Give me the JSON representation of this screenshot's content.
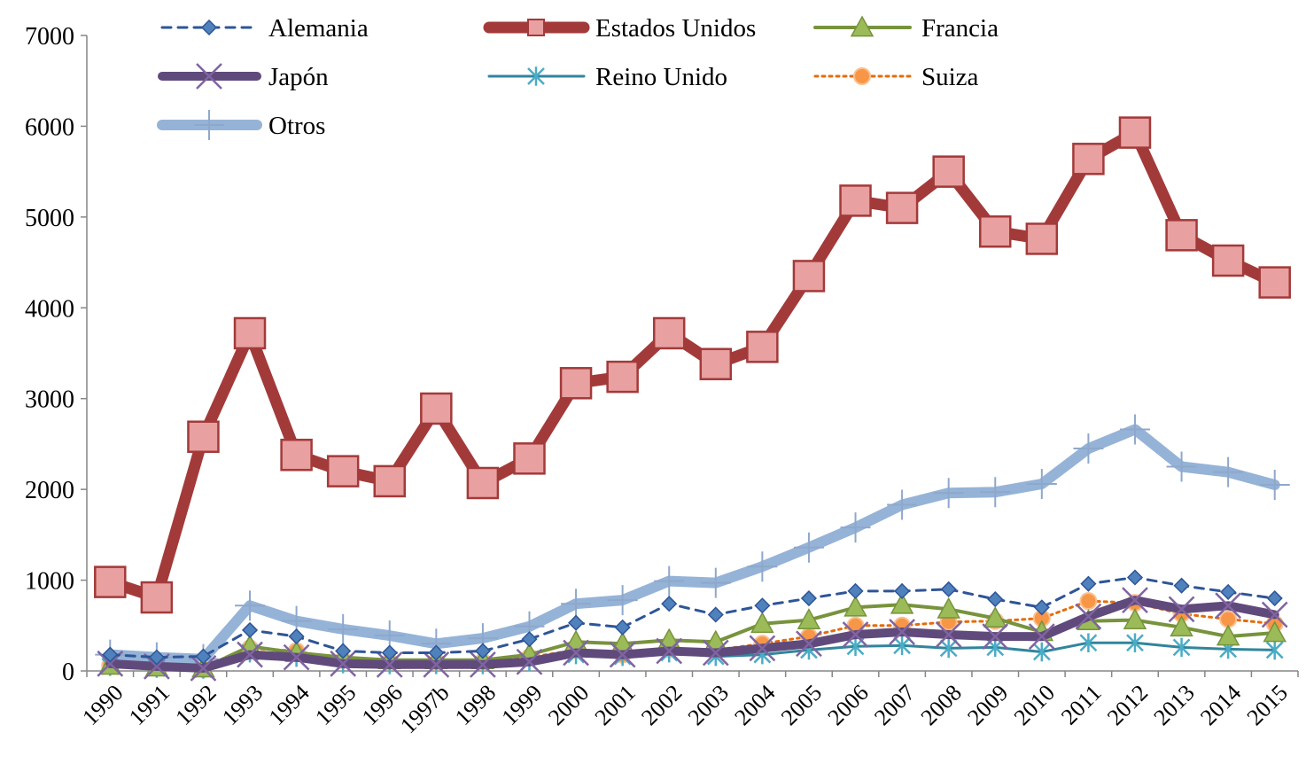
{
  "chart_data": {
    "type": "line",
    "title": "",
    "xlabel": "",
    "ylabel": "",
    "ylim": [
      0,
      7000
    ],
    "yticks": [
      0,
      1000,
      2000,
      3000,
      4000,
      5000,
      6000,
      7000
    ],
    "grid": false,
    "legend_position": "top",
    "categories": [
      "1990",
      "1991",
      "1992",
      "1993",
      "1994",
      "1995",
      "1996",
      "1997b",
      "1998",
      "1999",
      "2000",
      "2001",
      "2002",
      "2003",
      "2004",
      "2005",
      "2006",
      "2007",
      "2008",
      "2009",
      "2010",
      "2011",
      "2012",
      "2013",
      "2014",
      "2015"
    ],
    "series": [
      {
        "name": "Alemania",
        "color": "#2E5597",
        "fill": "#4F81BD",
        "marker": "diamond",
        "dash": "10,8",
        "width": 3,
        "values": [
          180,
          150,
          160,
          450,
          380,
          220,
          200,
          200,
          220,
          350,
          530,
          480,
          740,
          620,
          720,
          800,
          880,
          880,
          900,
          790,
          700,
          960,
          1030,
          940,
          870,
          800
        ]
      },
      {
        "name": "Estados Unidos",
        "color": "#A33A3A",
        "fill": "#E8A0A0",
        "marker": "square",
        "dash": "",
        "width": 13,
        "values": [
          980,
          810,
          2580,
          3720,
          2380,
          2200,
          2090,
          2890,
          2070,
          2340,
          3170,
          3240,
          3720,
          3380,
          3570,
          4350,
          5180,
          5100,
          5500,
          4840,
          4760,
          5640,
          5930,
          4800,
          4520,
          4280
        ]
      },
      {
        "name": "Francia",
        "color": "#77933C",
        "fill": "#9BBB59",
        "marker": "triangle",
        "dash": "",
        "width": 4,
        "values": [
          60,
          40,
          30,
          270,
          200,
          150,
          120,
          120,
          120,
          180,
          320,
          300,
          340,
          320,
          520,
          560,
          700,
          730,
          680,
          580,
          430,
          550,
          560,
          480,
          380,
          420
        ]
      },
      {
        "name": "Japón",
        "color": "#604A7B",
        "fill": "#8064A2",
        "marker": "x",
        "dash": "",
        "width": 10,
        "values": [
          80,
          50,
          30,
          180,
          150,
          80,
          70,
          70,
          70,
          100,
          200,
          180,
          220,
          200,
          250,
          300,
          400,
          430,
          400,
          380,
          380,
          600,
          780,
          680,
          720,
          620
        ]
      },
      {
        "name": "Reino Unido",
        "color": "#31859C",
        "fill": "#4BACC6",
        "marker": "star",
        "dash": "",
        "width": 3,
        "values": [
          50,
          30,
          20,
          200,
          150,
          80,
          70,
          70,
          70,
          100,
          180,
          160,
          200,
          160,
          180,
          230,
          270,
          280,
          250,
          260,
          210,
          310,
          310,
          260,
          240,
          230
        ]
      },
      {
        "name": "Suiza",
        "color": "#E46C0A",
        "fill": "#F79646",
        "marker": "circle",
        "dash": "3,5",
        "width": 3,
        "values": [
          60,
          40,
          20,
          250,
          220,
          120,
          100,
          100,
          100,
          150,
          230,
          180,
          240,
          230,
          300,
          380,
          500,
          500,
          540,
          550,
          580,
          770,
          750,
          630,
          570,
          520
        ]
      },
      {
        "name": "Otros",
        "color": "#95B3D7",
        "fill": "#95B3D7",
        "marker": "plus",
        "dash": "",
        "width": 12,
        "values": [
          180,
          150,
          130,
          720,
          550,
          460,
          390,
          300,
          360,
          490,
          740,
          780,
          990,
          970,
          1150,
          1360,
          1580,
          1830,
          1960,
          1970,
          2060,
          2450,
          2660,
          2250,
          2190,
          2050
        ]
      }
    ]
  }
}
